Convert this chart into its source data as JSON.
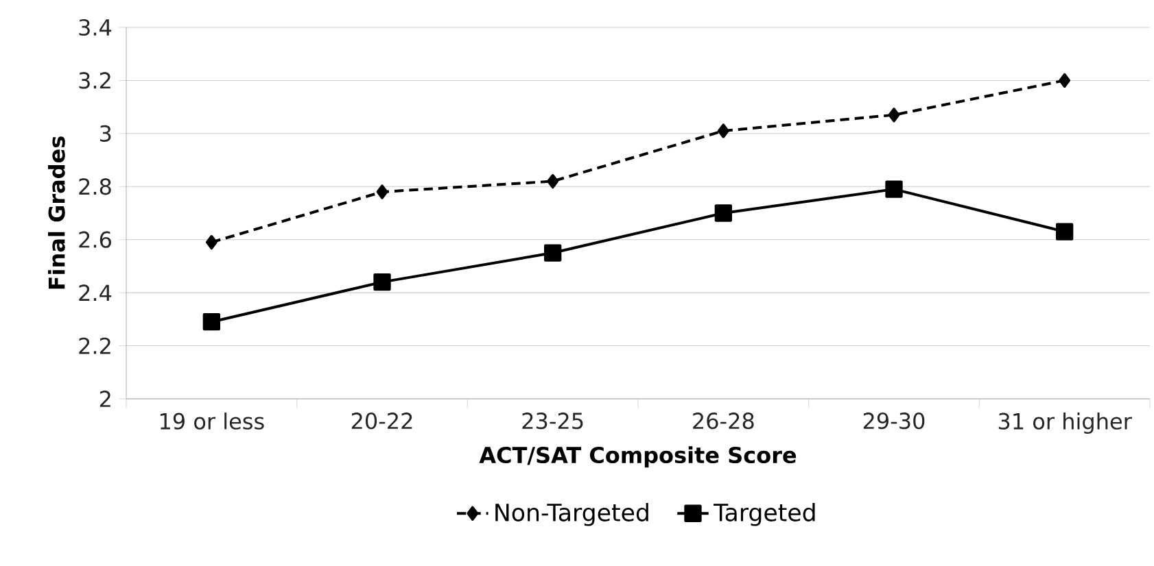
{
  "chart_data": {
    "type": "line",
    "xlabel": "ACT/SAT Composite Score",
    "ylabel": "Final Grades",
    "categories": [
      "19 or less",
      "20-22",
      "23-25",
      "26-28",
      "29-30",
      "31 or higher"
    ],
    "series": [
      {
        "name": "Non-Targeted",
        "color": "#000000",
        "marker": "diamond",
        "line_style": "dashed",
        "values": [
          2.59,
          2.78,
          2.82,
          3.01,
          3.07,
          3.2
        ]
      },
      {
        "name": "Targeted",
        "color": "#000000",
        "marker": "square",
        "line_style": "solid",
        "values": [
          2.29,
          2.44,
          2.55,
          2.7,
          2.79,
          2.63
        ]
      }
    ],
    "ylim": [
      2,
      3.4
    ],
    "yticks": [
      2,
      2.2,
      2.4,
      2.6,
      2.8,
      3,
      3.2,
      3.4
    ],
    "grid": "y",
    "legend": "bottom"
  }
}
